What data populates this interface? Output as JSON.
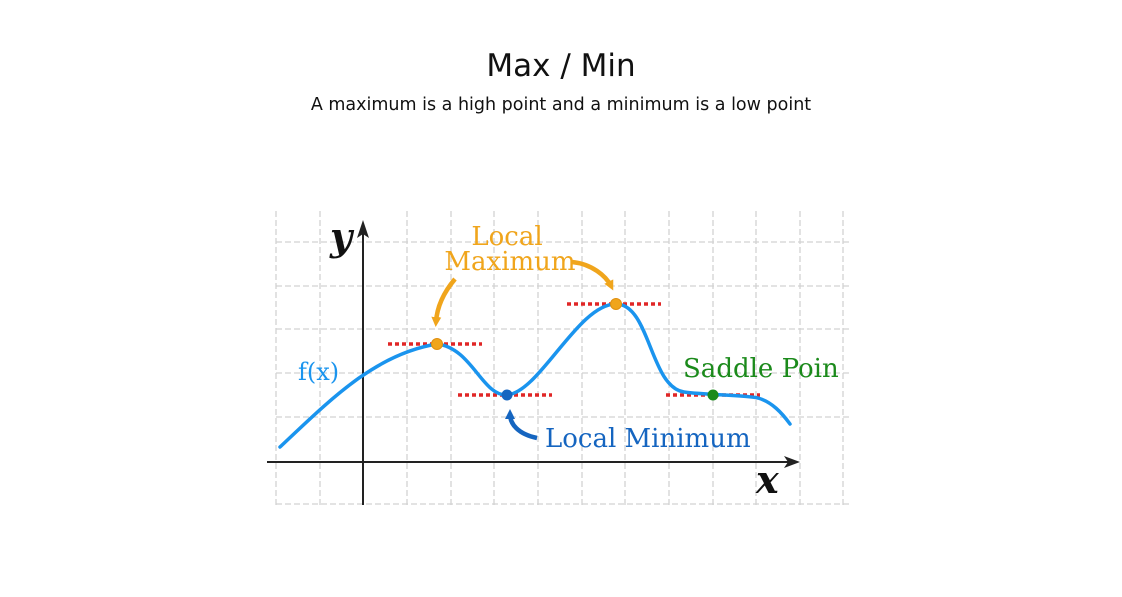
{
  "page": {
    "title": "Max / Min",
    "subtitle": "A maximum is a high point and a minimum is a low point"
  },
  "diagram": {
    "y_axis_label": "y",
    "x_axis_label": "x",
    "function_label": "f(x)",
    "local_maximum_label_line1": "Local",
    "local_maximum_label_line2": "Maximum",
    "local_minimum_label": "Local Minimum",
    "saddle_point_label": "Saddle Poin",
    "colors": {
      "curve": "#1a94ee",
      "maximum": "#f0a51c",
      "minimum": "#1565c0",
      "saddle": "#1b8a1b",
      "tangent": "#e02626",
      "grid": "#d2d2d2",
      "axis": "#222222"
    }
  }
}
